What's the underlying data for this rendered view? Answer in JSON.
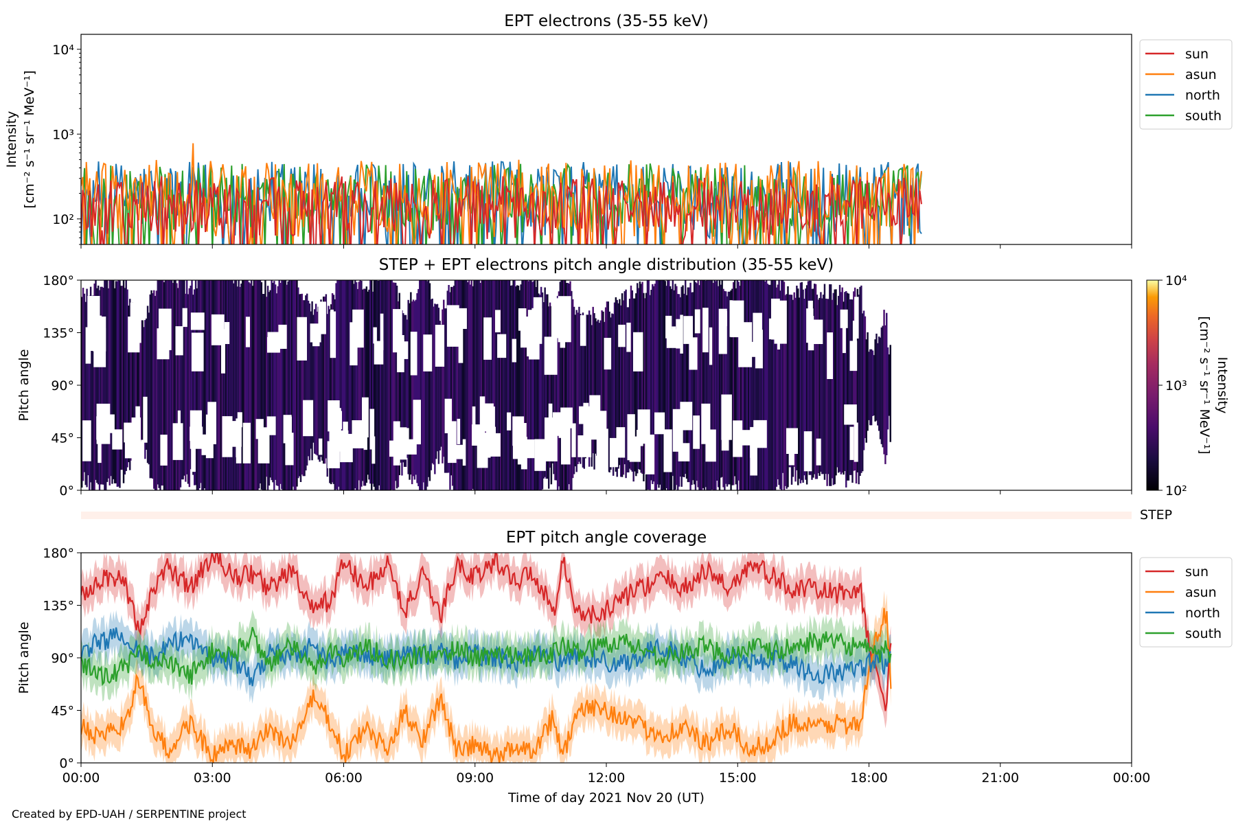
{
  "credit": "Created by EPD-UAH / SERPENTINE project",
  "chart_data": [
    {
      "type": "line",
      "title": "EPT electrons (35-55 keV)",
      "ylabel_line1": "Intensity",
      "ylabel_line2": "[cm⁻² s⁻¹ sr⁻¹ MeV⁻¹]",
      "yscale": "log",
      "ylim": [
        50,
        15000
      ],
      "yticks": [
        {
          "value": 100,
          "label": "10²"
        },
        {
          "value": 1000,
          "label": "10³"
        },
        {
          "value": 10000,
          "label": "10⁴"
        }
      ],
      "xlim_hours": [
        0,
        24
      ],
      "data_end_hour": 19.2,
      "legend_position": "right, outside",
      "series": [
        {
          "name": "sun",
          "color": "#d62728",
          "typical_min": 55,
          "typical_max": 320
        },
        {
          "name": "asun",
          "color": "#ff7f0e",
          "typical_min": 60,
          "typical_max": 500,
          "peak": {
            "hour": 2.55,
            "value": 780
          }
        },
        {
          "name": "north",
          "color": "#1f77b4",
          "typical_min": 60,
          "typical_max": 480
        },
        {
          "name": "south",
          "color": "#2ca02c",
          "typical_min": 60,
          "typical_max": 450
        }
      ]
    },
    {
      "type": "heatmap",
      "title": "STEP + EPT electrons pitch angle distribution (35-55 keV)",
      "ylabel": "Pitch angle",
      "ylim": [
        0,
        180
      ],
      "yticks": [
        "0°",
        "45°",
        "90°",
        "135°",
        "180°"
      ],
      "xlim_hours": [
        0,
        24
      ],
      "data_end_hour": 18.5,
      "colorbar": {
        "label_line1": "Intensity",
        "label_line2": "[cm⁻² s⁻¹ sr⁻¹ MeV⁻¹]",
        "scale": "log",
        "range": [
          100,
          10000
        ],
        "ticks": [
          "10²",
          "10³",
          "10⁴"
        ],
        "colormap": "inferno"
      }
    },
    {
      "type": "heatmap",
      "label": "STEP",
      "note": "empty strip",
      "xlim_hours": [
        0,
        24
      ]
    },
    {
      "type": "line",
      "title": "EPT pitch angle coverage",
      "ylabel": "Pitch angle",
      "ylim": [
        0,
        180
      ],
      "yticks": [
        "0°",
        "45°",
        "90°",
        "135°",
        "180°"
      ],
      "xlabel": "Time of day 2021 Nov 20 (UT)",
      "xticks": [
        "00:00",
        "03:00",
        "06:00",
        "09:00",
        "12:00",
        "15:00",
        "18:00",
        "21:00",
        "00:00"
      ],
      "xlim_hours": [
        0,
        24
      ],
      "data_end_hour": 18.5,
      "legend_position": "right, outside",
      "series": [
        {
          "name": "sun",
          "color": "#d62728",
          "band_halfwidth": 15,
          "x_hours": [
            0,
            0.5,
            1,
            1.3,
            1.7,
            2,
            2.5,
            3,
            3.5,
            3.9,
            4.3,
            4.8,
            5.3,
            5.7,
            6,
            6.5,
            7,
            7.4,
            7.8,
            8.2,
            8.6,
            9,
            9.5,
            10,
            10.3,
            10.8,
            11,
            11.3,
            11.8,
            12.3,
            12.8,
            13.3,
            13.8,
            14.3,
            14.8,
            15.3,
            15.8,
            16.2,
            16.8,
            17.3,
            17.8,
            18,
            18.2,
            18.4,
            18.5
          ],
          "values": [
            145,
            160,
            155,
            115,
            150,
            168,
            150,
            178,
            160,
            162,
            150,
            165,
            130,
            140,
            172,
            150,
            170,
            130,
            160,
            125,
            170,
            160,
            172,
            155,
            165,
            130,
            175,
            130,
            125,
            140,
            150,
            158,
            150,
            165,
            150,
            170,
            160,
            150,
            148,
            145,
            150,
            100,
            70,
            50,
            110
          ]
        },
        {
          "name": "asun",
          "color": "#ff7f0e",
          "band_halfwidth": 15,
          "x_hours": [
            0,
            0.5,
            1,
            1.3,
            1.7,
            2,
            2.5,
            3,
            3.5,
            3.9,
            4.3,
            4.8,
            5.3,
            5.7,
            6,
            6.5,
            7,
            7.4,
            7.8,
            8.2,
            8.6,
            9,
            9.5,
            10,
            10.3,
            10.8,
            11,
            11.3,
            11.8,
            12.3,
            12.8,
            13.3,
            13.8,
            14.3,
            14.8,
            15.3,
            15.8,
            16.2,
            16.8,
            17.3,
            17.8,
            18,
            18.2,
            18.4,
            18.5
          ],
          "values": [
            30,
            20,
            35,
            70,
            25,
            10,
            35,
            5,
            15,
            10,
            30,
            15,
            55,
            35,
            5,
            30,
            10,
            45,
            20,
            55,
            10,
            15,
            5,
            15,
            10,
            40,
            5,
            40,
            50,
            40,
            30,
            25,
            30,
            15,
            30,
            10,
            20,
            35,
            30,
            35,
            30,
            80,
            110,
            130,
            70
          ]
        },
        {
          "name": "north",
          "color": "#1f77b4",
          "band_halfwidth": 15,
          "x_hours": [
            0,
            0.5,
            1,
            1.3,
            1.7,
            2,
            2.5,
            3,
            3.5,
            3.9,
            4.3,
            4.8,
            5.3,
            5.7,
            6,
            6.5,
            7,
            7.4,
            7.8,
            8.2,
            8.6,
            9,
            9.5,
            10,
            10.3,
            10.8,
            11,
            11.3,
            11.8,
            12.3,
            12.8,
            13.3,
            13.8,
            14.3,
            14.8,
            15.3,
            15.8,
            16.2,
            16.8,
            17.3,
            17.8,
            18,
            18.2,
            18.4,
            18.5
          ],
          "values": [
            95,
            105,
            110,
            98,
            90,
            100,
            108,
            90,
            88,
            70,
            95,
            92,
            100,
            85,
            95,
            92,
            88,
            96,
            92,
            95,
            88,
            93,
            90,
            87,
            92,
            90,
            85,
            92,
            88,
            85,
            92,
            100,
            88,
            80,
            92,
            85,
            90,
            85,
            75,
            78,
            80,
            85,
            90,
            80,
            88
          ]
        },
        {
          "name": "south",
          "color": "#2ca02c",
          "band_halfwidth": 15,
          "x_hours": [
            0,
            0.5,
            1,
            1.3,
            1.7,
            2,
            2.5,
            3,
            3.5,
            3.9,
            4.3,
            4.8,
            5.3,
            5.7,
            6,
            6.5,
            7,
            7.4,
            7.8,
            8.2,
            8.6,
            9,
            9.5,
            10,
            10.3,
            10.8,
            11,
            11.3,
            11.8,
            12.3,
            12.8,
            13.3,
            13.8,
            14.3,
            14.8,
            15.3,
            15.8,
            16.2,
            16.8,
            17.3,
            17.8,
            18,
            18.2,
            18.4,
            18.5
          ],
          "values": [
            85,
            75,
            80,
            95,
            88,
            85,
            75,
            95,
            92,
            110,
            85,
            100,
            80,
            98,
            88,
            100,
            90,
            85,
            95,
            90,
            100,
            90,
            92,
            95,
            88,
            95,
            100,
            95,
            100,
            105,
            98,
            90,
            95,
            100,
            92,
            100,
            95,
            98,
            105,
            102,
            100,
            95,
            90,
            100,
            85
          ]
        }
      ]
    }
  ]
}
